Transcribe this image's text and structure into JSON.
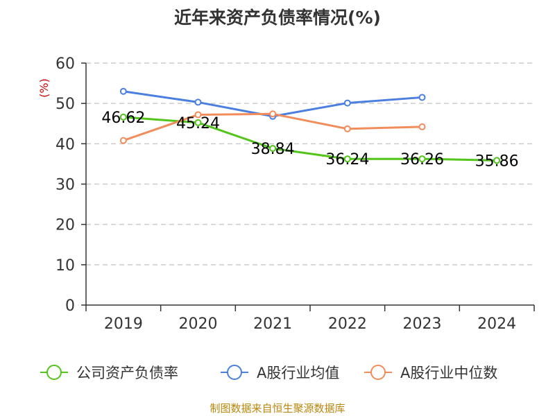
{
  "title": "近年来资产负债率情况(%)",
  "footer": "制图数据来自恒生聚源数据库",
  "chart_data": {
    "type": "line",
    "title": "近年来资产负债率情况(%)",
    "ylabel": "(%)",
    "xlabel": "",
    "categories": [
      "2019",
      "2020",
      "2021",
      "2022",
      "2023",
      "2024"
    ],
    "ylim": [
      0,
      60
    ],
    "yticks": [
      0,
      10,
      20,
      30,
      40,
      50,
      60
    ],
    "grid": true,
    "legend_position": "bottom",
    "series": [
      {
        "name": "公司资产负债率",
        "color": "#52c41a",
        "values": [
          46.62,
          45.24,
          38.84,
          36.24,
          36.26,
          35.86
        ],
        "labels": [
          "46.62",
          "45.24",
          "38.84",
          "36.24",
          "36.26",
          "35.86"
        ]
      },
      {
        "name": "A股行业均值",
        "color": "#4a7fe0",
        "values": [
          53.0,
          50.3,
          46.8,
          50.1,
          51.5,
          null
        ]
      },
      {
        "name": "A股行业中位数",
        "color": "#f28c5a",
        "values": [
          40.8,
          47.2,
          47.4,
          43.7,
          44.2,
          null
        ]
      }
    ]
  }
}
